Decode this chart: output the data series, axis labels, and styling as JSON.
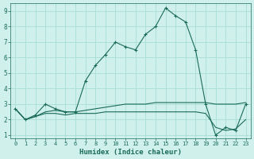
{
  "xlabel": "Humidex (Indice chaleur)",
  "bg_color": "#cff0eb",
  "grid_color": "#a8ddd7",
  "line_color": "#1a6b5a",
  "xlim": [
    -0.5,
    23.5
  ],
  "ylim": [
    0.8,
    9.5
  ],
  "xticks": [
    0,
    1,
    2,
    3,
    4,
    5,
    6,
    7,
    8,
    9,
    10,
    11,
    12,
    13,
    14,
    15,
    16,
    17,
    18,
    19,
    20,
    21,
    22,
    23
  ],
  "yticks": [
    1,
    2,
    3,
    4,
    5,
    6,
    7,
    8,
    9
  ],
  "series": [
    [
      2.7,
      2.0,
      2.3,
      3.0,
      2.7,
      2.5,
      2.5,
      4.5,
      5.5,
      6.2,
      7.0,
      6.7,
      6.5,
      7.5,
      8.0,
      9.2,
      8.7,
      8.3,
      6.5,
      3.0,
      1.0,
      1.5,
      1.3,
      3.0
    ],
    [
      2.7,
      2.0,
      2.2,
      2.5,
      2.6,
      2.5,
      2.5,
      2.6,
      2.7,
      2.8,
      2.9,
      3.0,
      3.0,
      3.0,
      3.1,
      3.1,
      3.1,
      3.1,
      3.1,
      3.1,
      3.0,
      3.0,
      3.0,
      3.1
    ],
    [
      2.7,
      2.0,
      2.2,
      2.4,
      2.4,
      2.3,
      2.4,
      2.4,
      2.4,
      2.5,
      2.5,
      2.5,
      2.5,
      2.5,
      2.5,
      2.5,
      2.5,
      2.5,
      2.5,
      2.4,
      1.5,
      1.3,
      1.4,
      2.0
    ]
  ]
}
